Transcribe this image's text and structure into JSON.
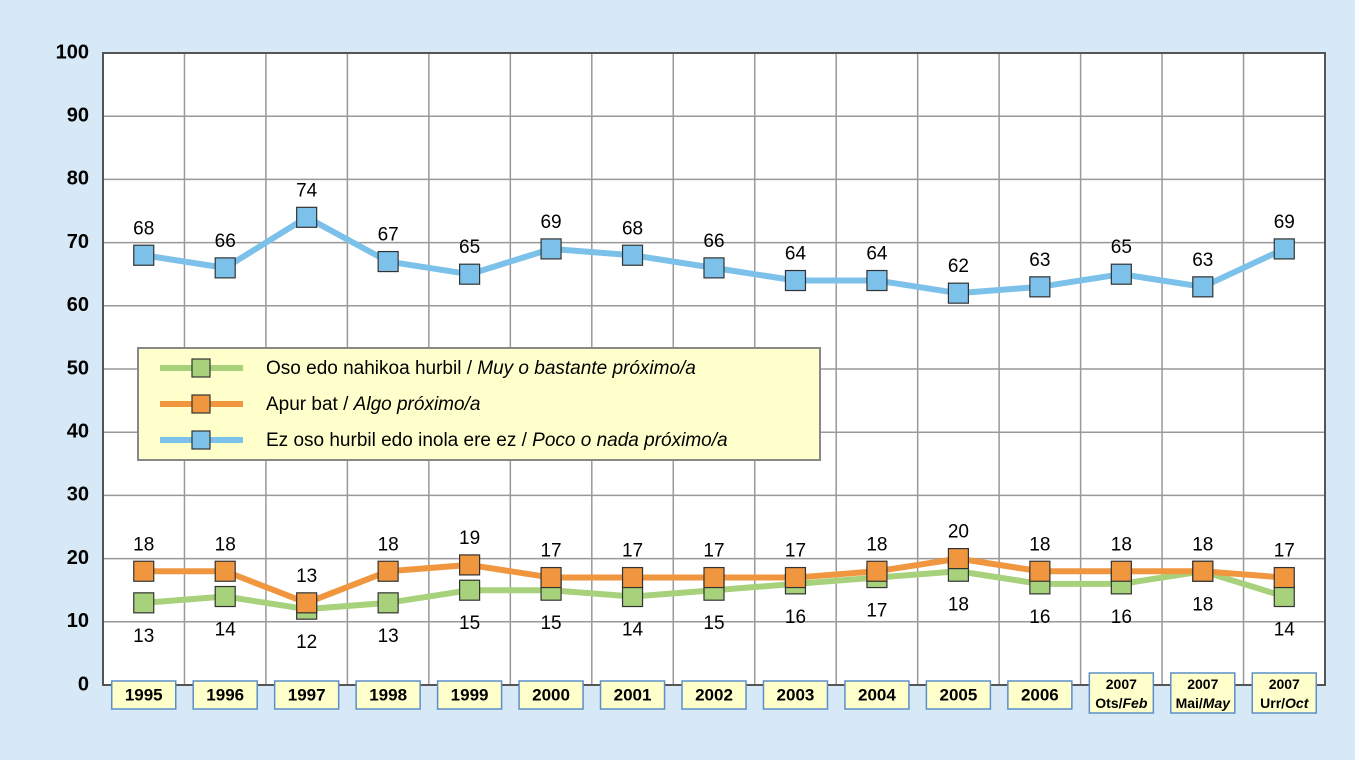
{
  "chart_data": {
    "type": "line",
    "categories": [
      "1995",
      "1996",
      "1997",
      "1998",
      "1999",
      "2000",
      "2001",
      "2002",
      "2003",
      "2004",
      "2005",
      "2006",
      "2007 Ots/Feb",
      "2007 Mai/May",
      "2007 Urr/Oct"
    ],
    "series": [
      {
        "name": "Oso edo nahikoa hurbil / Muy o bastante próximo/a",
        "color": "#a8d17c",
        "label_pos": "below",
        "values": [
          13,
          14,
          12,
          13,
          15,
          15,
          14,
          15,
          16,
          17,
          18,
          16,
          16,
          18,
          14
        ]
      },
      {
        "name": "Apur bat / Algo próximo/a",
        "color": "#f0963f",
        "label_pos": "above",
        "values": [
          18,
          18,
          13,
          18,
          19,
          17,
          17,
          17,
          17,
          18,
          20,
          18,
          18,
          18,
          17
        ]
      },
      {
        "name": "Ez oso hurbil edo inola ere ez / Poco o nada próximo/a",
        "color": "#7cc1ea",
        "label_pos": "above",
        "values": [
          68,
          66,
          74,
          67,
          65,
          69,
          68,
          66,
          64,
          64,
          62,
          63,
          65,
          63,
          69
        ]
      }
    ],
    "ylim": [
      0,
      100
    ],
    "yticks": [
      0,
      10,
      20,
      30,
      40,
      50,
      60,
      70,
      80,
      90,
      100
    ],
    "grid": true
  }
}
